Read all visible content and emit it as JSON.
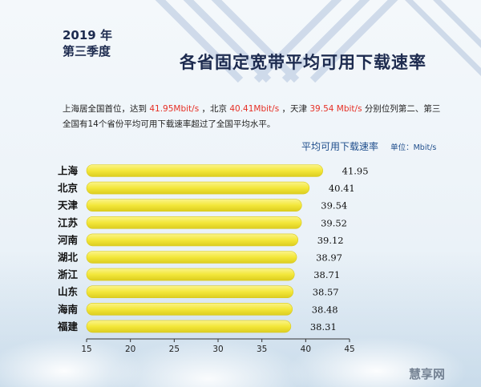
{
  "header": {
    "year_line": "2019 年",
    "quarter_line": "第三季度",
    "title": "各省固定宽带平均可用下载速率"
  },
  "description": {
    "line1_p1": "上海居全国首位，达到 ",
    "line1_v1": "41.95Mbit/s",
    "line1_p2": " ，北京 ",
    "line1_v2": "40.41Mbit/s",
    "line1_p3": " ，天津 ",
    "line1_v3": "39.54 Mbit/s",
    "line1_p4": " 分别位列第二、第三",
    "line2": "全国有14个省份平均可用下载速率超过了全国平均水平。"
  },
  "legend": {
    "label": "平均可用下载速率",
    "unit": "单位：Mbit/s"
  },
  "colors": {
    "bar": "#f3e73a",
    "bar_edge": "#d8c91e",
    "title": "#1d2b4f",
    "highlight": "#e63026",
    "legend": "#1f4e8c"
  },
  "chart_data": {
    "type": "bar",
    "orientation": "horizontal",
    "categories": [
      "上海",
      "北京",
      "天津",
      "江苏",
      "河南",
      "湖北",
      "浙江",
      "山东",
      "海南",
      "福建"
    ],
    "values": [
      41.95,
      40.41,
      39.54,
      39.52,
      39.12,
      38.97,
      38.71,
      38.57,
      38.48,
      38.31
    ],
    "value_labels": [
      "41.95",
      "40.41",
      "39.54",
      "39.52",
      "39.12",
      "38.97",
      "38.71",
      "38.57",
      "38.48",
      "38.31"
    ],
    "xlim": [
      15,
      45
    ],
    "xticks": [
      "15",
      "20",
      "25",
      "30",
      "35",
      "40",
      "45"
    ],
    "grid": false,
    "legend_position": "top-right"
  },
  "watermark": "慧享网"
}
